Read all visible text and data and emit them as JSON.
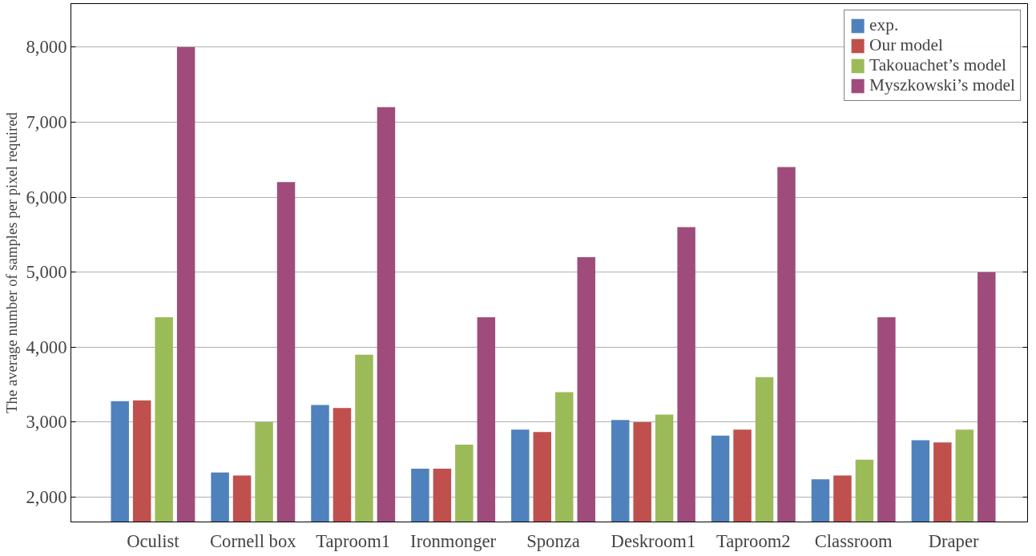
{
  "chart_data": {
    "type": "bar",
    "ylabel": "The average number of samples per pixel required",
    "categories": [
      "Oculist",
      "Cornell box",
      "Taproom1",
      "Ironmonger",
      "Sponza",
      "Deskroom1",
      "Taproom2",
      "Classroom",
      "Draper"
    ],
    "series": [
      {
        "name": "exp.",
        "color": "#4f81bd",
        "values": [
          3280,
          2330,
          3230,
          2380,
          2900,
          3030,
          2820,
          2240,
          2760
        ]
      },
      {
        "name": "Our model",
        "color": "#c0504d",
        "values": [
          3290,
          2290,
          3190,
          2380,
          2870,
          3000,
          2900,
          2290,
          2730
        ]
      },
      {
        "name": "Takouachet’s model",
        "color": "#9bbb59",
        "values": [
          4400,
          3000,
          3900,
          2700,
          3400,
          3100,
          3600,
          2500,
          2900
        ]
      },
      {
        "name": "Myszkowski’s model",
        "color": "#9f4c7c",
        "values": [
          8000,
          6200,
          7200,
          4400,
          5200,
          5600,
          6400,
          4400,
          5000
        ]
      }
    ],
    "ylim": [
      1670,
      8580
    ],
    "yticks": [
      {
        "value": 2000,
        "label": "2,000"
      },
      {
        "value": 3000,
        "label": "3,000"
      },
      {
        "value": 4000,
        "label": "4,000"
      },
      {
        "value": 5000,
        "label": "5,000"
      },
      {
        "value": 6000,
        "label": "6,000"
      },
      {
        "value": 7000,
        "label": "7,000"
      },
      {
        "value": 8000,
        "label": "8,000"
      }
    ],
    "grid": "y",
    "legend": "top right"
  }
}
